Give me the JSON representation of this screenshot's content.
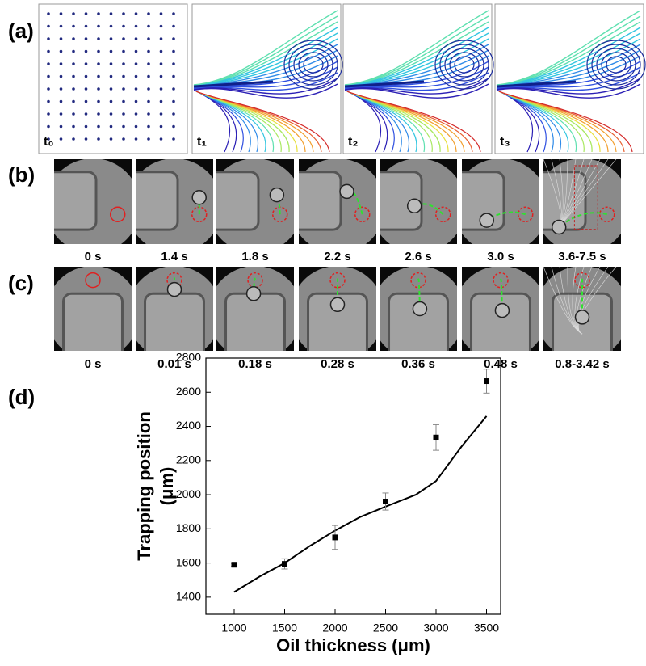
{
  "panel_a": {
    "label": "(a)",
    "frames": [
      "t₀",
      "t₁",
      "t₂",
      "t₃"
    ]
  },
  "panel_b": {
    "label": "(b)",
    "times": [
      "0 s",
      "1.4 s",
      "1.8 s",
      "2.2 s",
      "2.6 s",
      "3.0 s",
      "3.6-7.5 s"
    ]
  },
  "panel_c": {
    "label": "(c)",
    "times": [
      "0 s",
      "0.01 s",
      "0.18 s",
      "0.28 s",
      "0.36 s",
      "0.48 s",
      "0.8-3.42 s"
    ]
  },
  "panel_d": {
    "label": "(d)"
  },
  "chart_data": {
    "type": "scatter",
    "xlabel": "Oil thickness (μm)",
    "ylabel": [
      "Trapping position",
      "(μm)"
    ],
    "points": {
      "color": "#000000",
      "x": [
        1000,
        1500,
        2000,
        2500,
        3000,
        3500
      ],
      "values": [
        1590,
        1595,
        1750,
        1960,
        2335,
        2665
      ],
      "errors": [
        8,
        30,
        70,
        50,
        75,
        70
      ]
    },
    "curve": {
      "color": "#000000",
      "x": [
        1000,
        1250,
        1500,
        1750,
        2000,
        2250,
        2500,
        2800,
        3000,
        3250,
        3500
      ],
      "values": [
        1430,
        1520,
        1600,
        1700,
        1790,
        1870,
        1930,
        2000,
        2080,
        2280,
        2460
      ]
    },
    "xlim": [
      720,
      3640
    ],
    "ylim": [
      1300,
      2800
    ],
    "xticks": [
      1000,
      1500,
      2000,
      2500,
      3000,
      3500
    ],
    "yticks": [
      1400,
      1600,
      1800,
      2000,
      2200,
      2400,
      2600,
      2800
    ]
  }
}
